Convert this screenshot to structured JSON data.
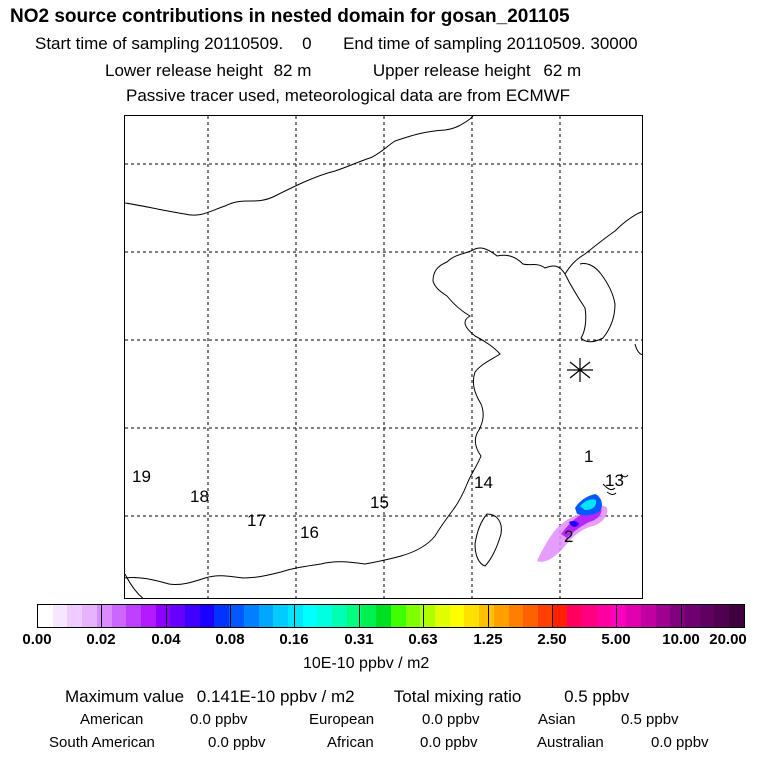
{
  "header": {
    "title": "NO2 source contributions in nested domain for gosan_201105",
    "start_label": "Start time of sampling",
    "start_value": "20110509.    0",
    "end_label": "End time of sampling",
    "end_value": "20110509. 30000",
    "lower_label": "Lower release height",
    "lower_value": "82 m",
    "upper_label": "Upper release height",
    "upper_value": "62 m",
    "note": "Passive tracer used, meteorological data are from ECMWF"
  },
  "map": {
    "region_labels": [
      "1",
      "2",
      "13",
      "14",
      "15",
      "16",
      "17",
      "18",
      "19"
    ],
    "receptor_marker": "asterisk-station"
  },
  "colorbar": {
    "ticks": [
      "0.00",
      "0.02",
      "0.04",
      "0.08",
      "0.16",
      "0.31",
      "0.63",
      "1.25",
      "2.50",
      "5.00",
      "10.00",
      "20.00"
    ],
    "units": "10E-10 ppbv / m2",
    "colors": [
      "#ffffff",
      "#f7e6ff",
      "#efccff",
      "#e6b3ff",
      "#d98cff",
      "#cc66ff",
      "#bf40ff",
      "#b31aff",
      "#8c00ff",
      "#6600ff",
      "#4000ff",
      "#1a00ff",
      "#0033ff",
      "#0059ff",
      "#0080ff",
      "#00a6ff",
      "#00ccff",
      "#00e6ff",
      "#00ffff",
      "#00ffe0",
      "#00ffb0",
      "#00ff80",
      "#00f050",
      "#00e020",
      "#40ff00",
      "#80ff00",
      "#b0ff00",
      "#e0ff00",
      "#ffff00",
      "#ffe000",
      "#ffc000",
      "#ffa000",
      "#ff8000",
      "#ff6000",
      "#ff4000",
      "#ff2000",
      "#ff0060",
      "#ff0080",
      "#ff00a0",
      "#ff00c0",
      "#e000b0",
      "#c000a0",
      "#a00090",
      "#800080",
      "#700070",
      "#600060",
      "#500050",
      "#400040"
    ]
  },
  "summary": {
    "max_label": "Maximum value",
    "max_value": "0.141E-10 ppbv / m2",
    "total_label": "Total mixing ratio",
    "total_value": "0.5 ppbv",
    "rows": [
      [
        {
          "name": "American",
          "value": "0.0 ppbv"
        },
        {
          "name": "European",
          "value": "0.0 ppbv"
        },
        {
          "name": "Asian",
          "value": "0.5 ppbv"
        }
      ],
      [
        {
          "name": "South American",
          "value": "0.0 ppbv"
        },
        {
          "name": "African",
          "value": "0.0 ppbv"
        },
        {
          "name": "Australian",
          "value": "0.0 ppbv"
        }
      ]
    ]
  }
}
